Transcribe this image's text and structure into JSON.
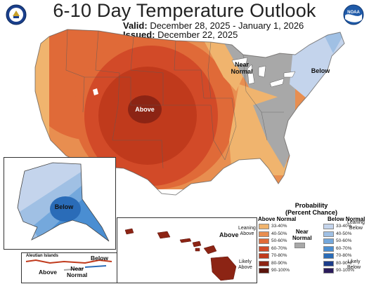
{
  "title": "6-10 Day Temperature Outlook",
  "valid_label": "Valid:",
  "valid_dates": "December 28, 2025 - January 1, 2026",
  "issued_label": "Issued:",
  "issued_date": "December 22, 2025",
  "logos": [
    {
      "name": "Department of Commerce seal",
      "icon": "doc-seal-icon"
    },
    {
      "name": "NOAA logo",
      "icon": "noaa-logo-icon",
      "text": "NOAA"
    }
  ],
  "map_labels": {
    "above_main": "Above",
    "below_northeast": "Below",
    "near_normal_line1": "Near",
    "near_normal_line2": "Normal",
    "alaska_below": "Below",
    "aleutian_islands": "Aleutian Islands",
    "aleutian_above": "Above",
    "aleutian_near_line1": "Near",
    "aleutian_near_line2": "Normal",
    "aleutian_below": "Below",
    "hawaii_above": "Above"
  },
  "legend": {
    "title_line1": "Probability",
    "title_line2": "(Percent Chance)",
    "above_header": "Above Normal",
    "near_header_line1": "Near",
    "near_header_line2": "Normal",
    "below_header": "Below Normal",
    "leaning_above_line1": "Leaning",
    "leaning_above_line2": "Above",
    "likely_above_line1": "Likely",
    "likely_above_line2": "Above",
    "leaning_below_line1": "Leaning",
    "leaning_below_line2": "Below",
    "likely_below_line1": "Likely",
    "likely_below_line2": "Below",
    "above_bins": [
      {
        "label": "33-40%",
        "color": "#f0b46e"
      },
      {
        "label": "40-50%",
        "color": "#e88e50"
      },
      {
        "label": "50-60%",
        "color": "#e06a38"
      },
      {
        "label": "60-70%",
        "color": "#d24a28"
      },
      {
        "label": "70-80%",
        "color": "#c03a1c"
      },
      {
        "label": "80-90%",
        "color": "#8c2414"
      },
      {
        "label": "90-100%",
        "color": "#5a140c"
      }
    ],
    "near_color": "#a8a8a8",
    "below_bins": [
      {
        "label": "33-40%",
        "color": "#c4d4ec"
      },
      {
        "label": "40-50%",
        "color": "#a0c0e4"
      },
      {
        "label": "50-60%",
        "color": "#74a8dc"
      },
      {
        "label": "60-70%",
        "color": "#4a8ed2"
      },
      {
        "label": "70-80%",
        "color": "#2a6cb8"
      },
      {
        "label": "80-90%",
        "color": "#1a3c8a"
      },
      {
        "label": "90-100%",
        "color": "#2a1a5a"
      }
    ]
  }
}
